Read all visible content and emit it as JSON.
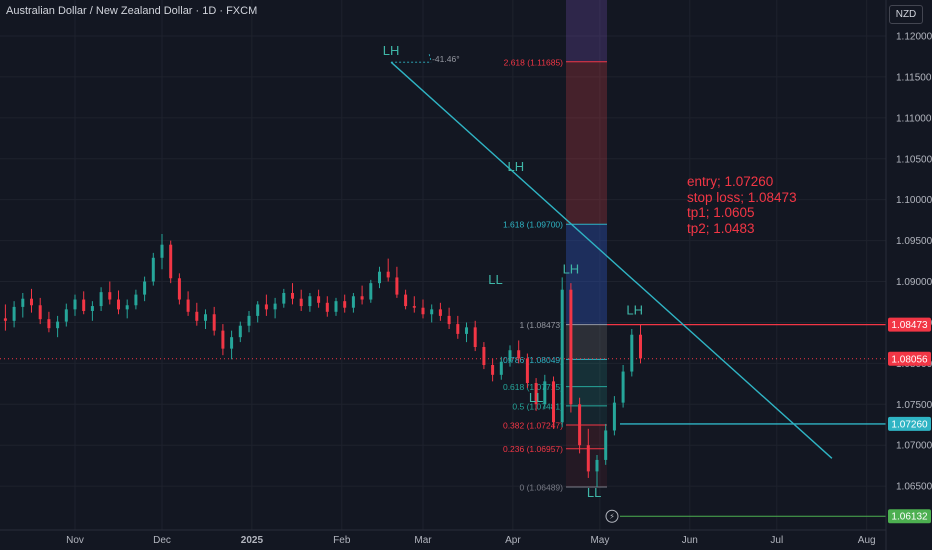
{
  "header": {
    "title": "Australian Dollar / New Zealand Dollar · 1D · FXCM",
    "currency": "NZD"
  },
  "colors": {
    "background": "#131722",
    "up": "#26a69a",
    "down": "#f23645",
    "trendline": "#2fb4c4",
    "grid": "#1e222d",
    "label_teal": "#3fb7a8"
  },
  "annotation": {
    "entry": "entry; 1.07260",
    "stop_loss": "stop loss; 1.08473",
    "tp1": "tp1; 1.0605",
    "tp2": "tp2; 1.0483"
  },
  "chart_data": {
    "type": "candlestick",
    "title": "Australian Dollar / New Zealand Dollar · 1D · FXCM",
    "ylim": [
      1.0595,
      1.1245
    ],
    "y_ticks": [
      "1.12000",
      "1.11500",
      "1.11000",
      "1.10500",
      "1.10000",
      "1.09500",
      "1.09000",
      "1.08500",
      "1.08000",
      "1.07500",
      "1.07000",
      "1.06500"
    ],
    "x_ticks": [
      "Nov",
      "Dec",
      "2025",
      "Feb",
      "Mar",
      "Apr",
      "May",
      "Jun",
      "Jul",
      "Aug"
    ],
    "price_labels": [
      {
        "text": "1.08473",
        "value": 1.08473,
        "color": "#f23645"
      },
      {
        "text": "1.08056",
        "value": 1.08056,
        "color": "#f23645"
      },
      {
        "text": "1.07260",
        "value": 1.0726,
        "color": "#2fb4c4"
      },
      {
        "text": "1.06132",
        "value": 1.06132,
        "color": "#4caf50"
      }
    ],
    "fib_levels": [
      {
        "label": "2.618 (1.11685)",
        "value": 1.11685
      },
      {
        "label": "1.618 (1.09700)",
        "value": 1.097
      },
      {
        "label": "1 (1.08473)",
        "value": 1.08473
      },
      {
        "label": "0.786 (1.08049)",
        "value": 1.08049
      },
      {
        "label": "0.618 (1.07715)",
        "value": 1.07715
      },
      {
        "label": "0.5 (1.07481)",
        "value": 1.07481
      },
      {
        "label": "0.382 (1.07247)",
        "value": 1.07247
      },
      {
        "label": "0.236 (1.06957)",
        "value": 1.06957
      },
      {
        "label": "0 (1.06489)",
        "value": 1.06489
      }
    ],
    "swing_labels": [
      {
        "text": "LH",
        "date": "2025-02-17",
        "value": 1.1177
      },
      {
        "text": "LH",
        "date": "2025-04-01",
        "value": 1.1035
      },
      {
        "text": "LL",
        "date": "2025-03-25",
        "value": 1.0897
      },
      {
        "text": "LH",
        "date": "2025-04-20",
        "value": 1.091
      },
      {
        "text": "LL",
        "date": "2025-04-08",
        "value": 1.0753
      },
      {
        "text": "LL",
        "date": "2025-04-28",
        "value": 1.0637
      },
      {
        "text": "LH",
        "date": "2025-05-12",
        "value": 1.086
      }
    ],
    "angle_label": "-41.46°",
    "trendline": {
      "start": {
        "date": "2025-02-17",
        "value": 1.1168
      },
      "end": {
        "date": "2025-07-19",
        "value": 1.0684
      }
    },
    "candles": [
      {
        "d": "2024-10-01",
        "o": 1.0868,
        "h": 1.0882,
        "l": 1.0842,
        "c": 1.0862
      },
      {
        "d": "2024-10-04",
        "o": 1.0862,
        "h": 1.088,
        "l": 1.0838,
        "c": 1.0858
      },
      {
        "d": "2024-10-07",
        "o": 1.0855,
        "h": 1.0872,
        "l": 1.084,
        "c": 1.0852
      },
      {
        "d": "2024-10-10",
        "o": 1.0852,
        "h": 1.0876,
        "l": 1.0844,
        "c": 1.0869
      },
      {
        "d": "2024-10-13",
        "o": 1.0869,
        "h": 1.0886,
        "l": 1.0856,
        "c": 1.0879
      },
      {
        "d": "2024-10-16",
        "o": 1.0879,
        "h": 1.0891,
        "l": 1.0862,
        "c": 1.0871
      },
      {
        "d": "2024-10-19",
        "o": 1.0871,
        "h": 1.088,
        "l": 1.0848,
        "c": 1.0854
      },
      {
        "d": "2024-10-22",
        "o": 1.0854,
        "h": 1.0863,
        "l": 1.0838,
        "c": 1.0843
      },
      {
        "d": "2024-10-25",
        "o": 1.0843,
        "h": 1.0858,
        "l": 1.0832,
        "c": 1.0851
      },
      {
        "d": "2024-10-28",
        "o": 1.0851,
        "h": 1.0873,
        "l": 1.0845,
        "c": 1.0866
      },
      {
        "d": "2024-10-31",
        "o": 1.0866,
        "h": 1.0884,
        "l": 1.0858,
        "c": 1.0878
      },
      {
        "d": "2024-11-03",
        "o": 1.0878,
        "h": 1.0888,
        "l": 1.086,
        "c": 1.0864
      },
      {
        "d": "2024-11-06",
        "o": 1.0864,
        "h": 1.0876,
        "l": 1.0852,
        "c": 1.087
      },
      {
        "d": "2024-11-09",
        "o": 1.087,
        "h": 1.0893,
        "l": 1.0864,
        "c": 1.0887
      },
      {
        "d": "2024-11-12",
        "o": 1.0887,
        "h": 1.09,
        "l": 1.0872,
        "c": 1.0878
      },
      {
        "d": "2024-11-15",
        "o": 1.0878,
        "h": 1.0889,
        "l": 1.086,
        "c": 1.0866
      },
      {
        "d": "2024-11-18",
        "o": 1.0866,
        "h": 1.0878,
        "l": 1.0855,
        "c": 1.0871
      },
      {
        "d": "2024-11-21",
        "o": 1.0871,
        "h": 1.089,
        "l": 1.0866,
        "c": 1.0884
      },
      {
        "d": "2024-11-24",
        "o": 1.0884,
        "h": 1.0906,
        "l": 1.0876,
        "c": 1.09
      },
      {
        "d": "2024-11-27",
        "o": 1.09,
        "h": 1.0935,
        "l": 1.0895,
        "c": 1.0929
      },
      {
        "d": "2024-11-30",
        "o": 1.0929,
        "h": 1.0958,
        "l": 1.0915,
        "c": 1.0945
      },
      {
        "d": "2024-12-03",
        "o": 1.0945,
        "h": 1.095,
        "l": 1.0898,
        "c": 1.0904
      },
      {
        "d": "2024-12-06",
        "o": 1.0904,
        "h": 1.091,
        "l": 1.0872,
        "c": 1.0878
      },
      {
        "d": "2024-12-09",
        "o": 1.0878,
        "h": 1.0888,
        "l": 1.0858,
        "c": 1.0863
      },
      {
        "d": "2024-12-12",
        "o": 1.0863,
        "h": 1.0874,
        "l": 1.0846,
        "c": 1.0852
      },
      {
        "d": "2024-12-15",
        "o": 1.0852,
        "h": 1.0866,
        "l": 1.0842,
        "c": 1.086
      },
      {
        "d": "2024-12-18",
        "o": 1.086,
        "h": 1.0869,
        "l": 1.0834,
        "c": 1.084
      },
      {
        "d": "2024-12-21",
        "o": 1.084,
        "h": 1.0848,
        "l": 1.081,
        "c": 1.0818
      },
      {
        "d": "2024-12-24",
        "o": 1.0818,
        "h": 1.084,
        "l": 1.0805,
        "c": 1.0832
      },
      {
        "d": "2024-12-27",
        "o": 1.0832,
        "h": 1.0851,
        "l": 1.0826,
        "c": 1.0846
      },
      {
        "d": "2024-12-30",
        "o": 1.0846,
        "h": 1.0864,
        "l": 1.0838,
        "c": 1.0858
      },
      {
        "d": "2025-01-02",
        "o": 1.0858,
        "h": 1.0876,
        "l": 1.085,
        "c": 1.0872
      },
      {
        "d": "2025-01-05",
        "o": 1.0872,
        "h": 1.0884,
        "l": 1.0858,
        "c": 1.0866
      },
      {
        "d": "2025-01-08",
        "o": 1.0866,
        "h": 1.088,
        "l": 1.0855,
        "c": 1.0873
      },
      {
        "d": "2025-01-11",
        "o": 1.0873,
        "h": 1.0891,
        "l": 1.0868,
        "c": 1.0886
      },
      {
        "d": "2025-01-14",
        "o": 1.0886,
        "h": 1.0898,
        "l": 1.0872,
        "c": 1.0879
      },
      {
        "d": "2025-01-17",
        "o": 1.0879,
        "h": 1.089,
        "l": 1.0864,
        "c": 1.087
      },
      {
        "d": "2025-01-20",
        "o": 1.087,
        "h": 1.0886,
        "l": 1.0863,
        "c": 1.0882
      },
      {
        "d": "2025-01-23",
        "o": 1.0882,
        "h": 1.089,
        "l": 1.0868,
        "c": 1.0874
      },
      {
        "d": "2025-01-26",
        "o": 1.0874,
        "h": 1.0882,
        "l": 1.0857,
        "c": 1.0863
      },
      {
        "d": "2025-01-29",
        "o": 1.0863,
        "h": 1.088,
        "l": 1.0858,
        "c": 1.0876
      },
      {
        "d": "2025-02-01",
        "o": 1.0876,
        "h": 1.0884,
        "l": 1.0862,
        "c": 1.0868
      },
      {
        "d": "2025-02-04",
        "o": 1.0868,
        "h": 1.0886,
        "l": 1.0862,
        "c": 1.0882
      },
      {
        "d": "2025-02-07",
        "o": 1.0882,
        "h": 1.0895,
        "l": 1.0872,
        "c": 1.0878
      },
      {
        "d": "2025-02-10",
        "o": 1.0878,
        "h": 1.0902,
        "l": 1.0874,
        "c": 1.0898
      },
      {
        "d": "2025-02-13",
        "o": 1.0898,
        "h": 1.0918,
        "l": 1.0892,
        "c": 1.0912
      },
      {
        "d": "2025-02-16",
        "o": 1.0912,
        "h": 1.0928,
        "l": 1.09,
        "c": 1.0905
      },
      {
        "d": "2025-02-19",
        "o": 1.0905,
        "h": 1.0918,
        "l": 1.088,
        "c": 1.0884
      },
      {
        "d": "2025-02-22",
        "o": 1.0884,
        "h": 1.089,
        "l": 1.0866,
        "c": 1.087
      },
      {
        "d": "2025-02-25",
        "o": 1.087,
        "h": 1.0882,
        "l": 1.0862,
        "c": 1.0868
      },
      {
        "d": "2025-02-28",
        "o": 1.0868,
        "h": 1.0878,
        "l": 1.0855,
        "c": 1.086
      },
      {
        "d": "2025-03-03",
        "o": 1.086,
        "h": 1.0872,
        "l": 1.085,
        "c": 1.0866
      },
      {
        "d": "2025-03-06",
        "o": 1.0866,
        "h": 1.0874,
        "l": 1.0852,
        "c": 1.0858
      },
      {
        "d": "2025-03-09",
        "o": 1.0858,
        "h": 1.0868,
        "l": 1.0842,
        "c": 1.0848
      },
      {
        "d": "2025-03-12",
        "o": 1.0848,
        "h": 1.0858,
        "l": 1.083,
        "c": 1.0836
      },
      {
        "d": "2025-03-15",
        "o": 1.0836,
        "h": 1.085,
        "l": 1.0826,
        "c": 1.0844
      },
      {
        "d": "2025-03-18",
        "o": 1.0844,
        "h": 1.0852,
        "l": 1.0815,
        "c": 1.082
      },
      {
        "d": "2025-03-21",
        "o": 1.082,
        "h": 1.0826,
        "l": 1.0793,
        "c": 1.0798
      },
      {
        "d": "2025-03-24",
        "o": 1.0798,
        "h": 1.0806,
        "l": 1.0778,
        "c": 1.0786
      },
      {
        "d": "2025-03-27",
        "o": 1.0786,
        "h": 1.0808,
        "l": 1.078,
        "c": 1.0802
      },
      {
        "d": "2025-03-30",
        "o": 1.0802,
        "h": 1.0822,
        "l": 1.0796,
        "c": 1.0816
      },
      {
        "d": "2025-04-02",
        "o": 1.0816,
        "h": 1.0828,
        "l": 1.08,
        "c": 1.0806
      },
      {
        "d": "2025-04-05",
        "o": 1.0806,
        "h": 1.0812,
        "l": 1.077,
        "c": 1.0776
      },
      {
        "d": "2025-04-08",
        "o": 1.0776,
        "h": 1.0782,
        "l": 1.0742,
        "c": 1.075
      },
      {
        "d": "2025-04-11",
        "o": 1.075,
        "h": 1.0786,
        "l": 1.0744,
        "c": 1.0778
      },
      {
        "d": "2025-04-14",
        "o": 1.0778,
        "h": 1.0784,
        "l": 1.072,
        "c": 1.0728
      },
      {
        "d": "2025-04-17",
        "o": 1.0728,
        "h": 1.0905,
        "l": 1.0722,
        "c": 1.089
      },
      {
        "d": "2025-04-20",
        "o": 1.089,
        "h": 1.0898,
        "l": 1.074,
        "c": 1.075
      },
      {
        "d": "2025-04-23",
        "o": 1.075,
        "h": 1.0758,
        "l": 1.069,
        "c": 1.07
      },
      {
        "d": "2025-04-26",
        "o": 1.07,
        "h": 1.072,
        "l": 1.066,
        "c": 1.0668
      },
      {
        "d": "2025-04-29",
        "o": 1.0668,
        "h": 1.0688,
        "l": 1.0649,
        "c": 1.0682
      },
      {
        "d": "2025-05-02",
        "o": 1.0682,
        "h": 1.0726,
        "l": 1.0676,
        "c": 1.0718
      },
      {
        "d": "2025-05-05",
        "o": 1.0718,
        "h": 1.076,
        "l": 1.0712,
        "c": 1.0752
      },
      {
        "d": "2025-05-08",
        "o": 1.0752,
        "h": 1.0798,
        "l": 1.0746,
        "c": 1.079
      },
      {
        "d": "2025-05-11",
        "o": 1.079,
        "h": 1.0842,
        "l": 1.0784,
        "c": 1.0835
      },
      {
        "d": "2025-05-14",
        "o": 1.0835,
        "h": 1.0847,
        "l": 1.08,
        "c": 1.0806
      }
    ]
  }
}
